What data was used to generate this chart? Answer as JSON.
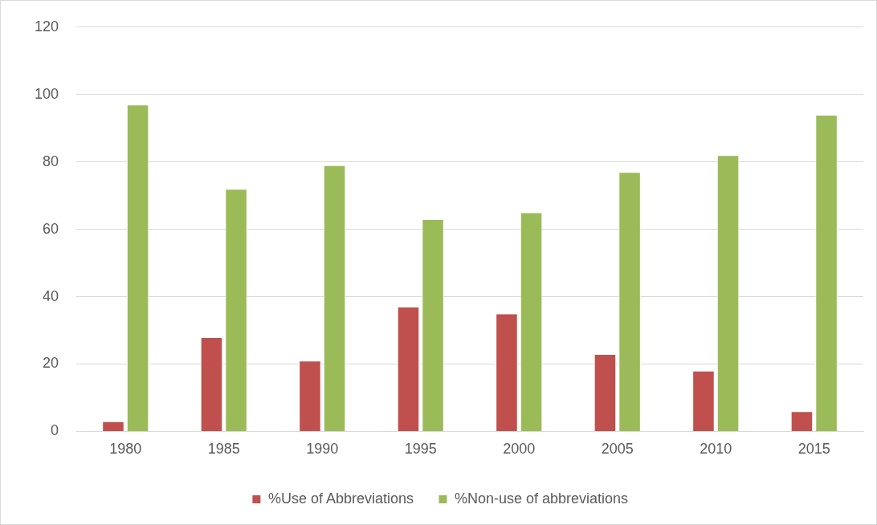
{
  "chart_data": {
    "type": "bar",
    "categories": [
      "1980",
      "1985",
      "1990",
      "1995",
      "2000",
      "2005",
      "2010",
      "2015"
    ],
    "series": [
      {
        "name": "%Use of Abbreviations",
        "color": "#c0504d",
        "values": [
          3,
          28,
          21,
          37,
          35,
          23,
          18,
          6
        ]
      },
      {
        "name": "%Non-use of abbreviations",
        "color": "#9bbb59",
        "values": [
          97,
          72,
          79,
          63,
          65,
          77,
          82,
          94
        ]
      }
    ],
    "ylim": [
      0,
      120
    ],
    "yticks": [
      0,
      20,
      40,
      60,
      80,
      100,
      120
    ],
    "grid": "y",
    "legend": "bottom"
  }
}
